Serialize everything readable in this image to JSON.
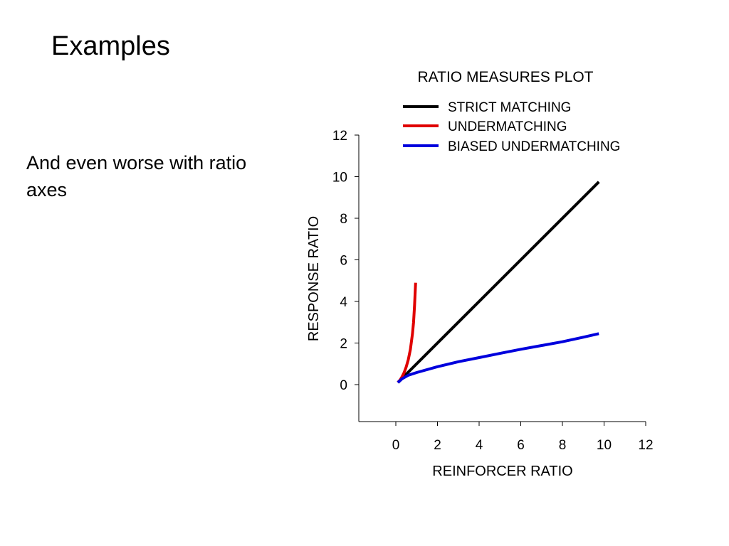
{
  "slide": {
    "title": "Examples",
    "body": "And even worse with ratio axes"
  },
  "chart_data": {
    "type": "line",
    "title": "RATIO MEASURES PLOT",
    "xlabel": "REINFORCER RATIO",
    "ylabel": "RESPONSE RATIO",
    "xlim": [
      -1.8,
      12
    ],
    "ylim": [
      -1.8,
      12
    ],
    "xticks": [
      0,
      2,
      4,
      6,
      8,
      10,
      12
    ],
    "yticks": [
      0,
      2,
      4,
      6,
      8,
      10,
      12
    ],
    "grid": false,
    "legend_position": "top-right",
    "series": [
      {
        "name": "STRICT MATCHING",
        "color": "#000000",
        "x": [
          0.1,
          9.75
        ],
        "y": [
          0.1,
          9.75
        ]
      },
      {
        "name": "UNDERMATCHING",
        "color": "#e00000",
        "x": [
          0.1,
          0.15,
          0.2,
          0.3,
          0.4,
          0.5,
          0.6,
          0.7,
          0.8,
          0.85,
          0.9,
          0.95
        ],
        "y": [
          0.1,
          0.16,
          0.22,
          0.38,
          0.58,
          0.85,
          1.2,
          1.7,
          2.45,
          3.0,
          3.8,
          4.9
        ]
      },
      {
        "name": "BIASED UNDERMATCHING",
        "color": "#0000dd",
        "x": [
          0.1,
          0.3,
          0.6,
          1,
          2,
          3,
          4,
          5,
          6,
          7,
          8,
          9,
          9.75
        ],
        "y": [
          0.1,
          0.28,
          0.45,
          0.58,
          0.86,
          1.1,
          1.3,
          1.5,
          1.7,
          1.88,
          2.06,
          2.28,
          2.45
        ]
      }
    ]
  }
}
